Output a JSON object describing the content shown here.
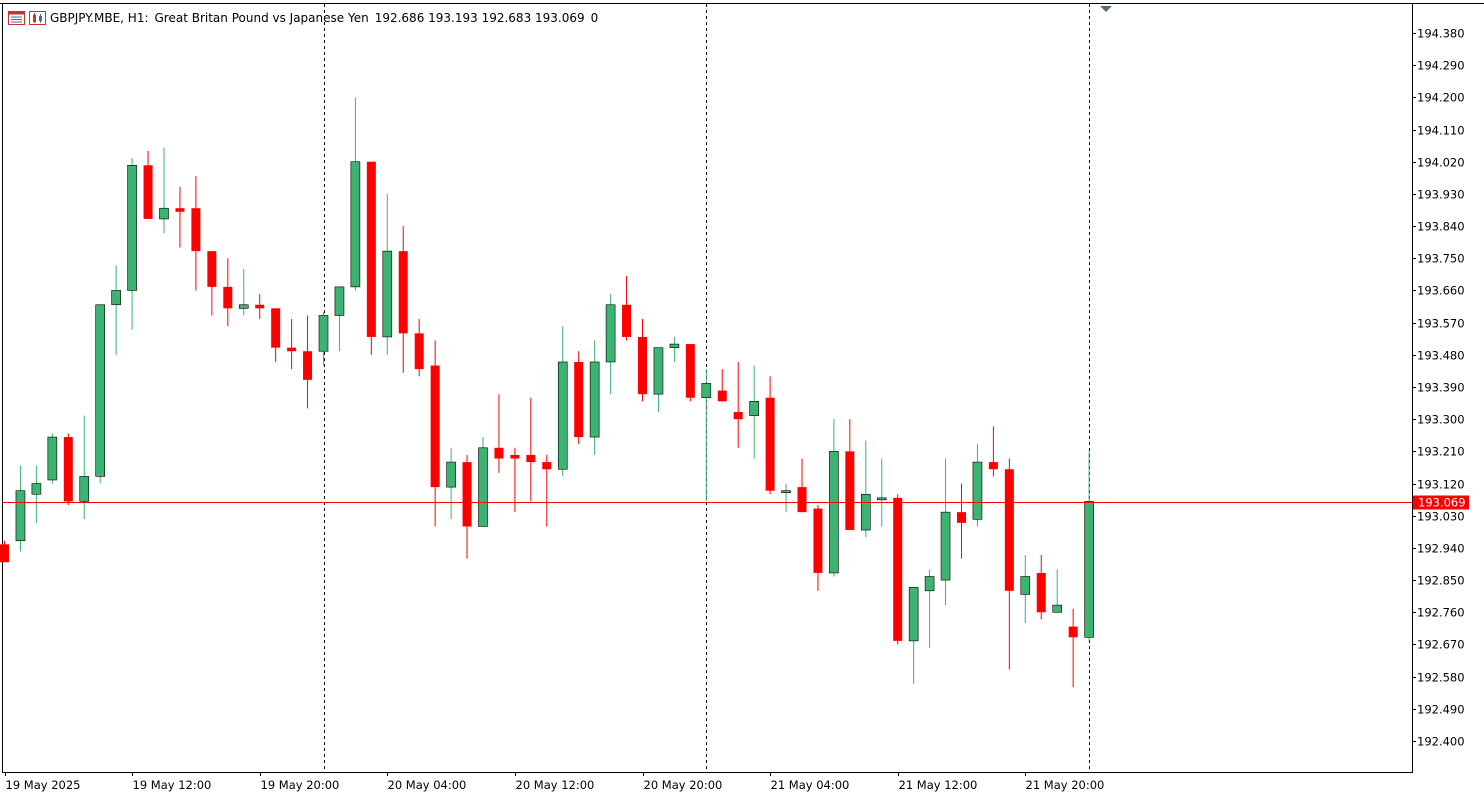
{
  "header": {
    "symbol": "GBPJPY.MBE, H1:",
    "description": "Great Britan Pound vs Japanese Yen",
    "ohlc": "192.686 193.193 192.683 193.069",
    "volume": "0"
  },
  "icons": [
    "chart-grid-icon",
    "chart-candle-icon"
  ],
  "colors": {
    "bull": "#3cb371",
    "bear": "#ff0000",
    "price_line": "#ff0000",
    "price_label_bg": "#ff0000"
  },
  "chart_data": {
    "type": "candlestick",
    "symbol": "GBPJPY.MBE",
    "timeframe": "H1",
    "ylim": [
      192.31,
      194.47
    ],
    "y_ticks": [
      "194.380",
      "194.290",
      "194.200",
      "194.110",
      "194.020",
      "193.930",
      "193.840",
      "193.750",
      "193.660",
      "193.570",
      "193.480",
      "193.390",
      "193.300",
      "193.210",
      "193.120",
      "193.030",
      "192.940",
      "192.850",
      "192.760",
      "192.670",
      "192.580",
      "192.490",
      "192.400"
    ],
    "x_labels": [
      {
        "index": 0,
        "label": "19 May 2025"
      },
      {
        "index": 8,
        "label": "19 May 12:00"
      },
      {
        "index": 16,
        "label": "19 May 20:00"
      },
      {
        "index": 24,
        "label": "20 May 04:00"
      },
      {
        "index": 32,
        "label": "20 May 12:00"
      },
      {
        "index": 40,
        "label": "20 May 20:00"
      },
      {
        "index": 48,
        "label": "21 May 04:00"
      },
      {
        "index": 56,
        "label": "21 May 12:00"
      },
      {
        "index": 64,
        "label": "21 May 20:00"
      }
    ],
    "session_separators": [
      20,
      44,
      68
    ],
    "current_price": "193.069",
    "candles": [
      [
        192.95,
        192.96,
        192.9,
        192.9
      ],
      [
        192.96,
        193.17,
        192.93,
        193.1
      ],
      [
        193.09,
        193.17,
        193.01,
        193.12
      ],
      [
        193.13,
        193.26,
        193.12,
        193.25
      ],
      [
        193.25,
        193.26,
        193.06,
        193.07
      ],
      [
        193.07,
        193.31,
        193.02,
        193.14
      ],
      [
        193.14,
        193.62,
        193.12,
        193.62
      ],
      [
        193.62,
        193.73,
        193.48,
        193.66
      ],
      [
        193.66,
        194.03,
        193.55,
        194.01
      ],
      [
        194.01,
        194.05,
        193.86,
        193.86
      ],
      [
        193.86,
        194.06,
        193.82,
        193.89
      ],
      [
        193.89,
        193.95,
        193.78,
        193.88
      ],
      [
        193.89,
        193.98,
        193.66,
        193.77
      ],
      [
        193.77,
        193.77,
        193.59,
        193.67
      ],
      [
        193.67,
        193.75,
        193.56,
        193.61
      ],
      [
        193.61,
        193.72,
        193.59,
        193.62
      ],
      [
        193.62,
        193.65,
        193.58,
        193.61
      ],
      [
        193.61,
        193.61,
        193.46,
        193.5
      ],
      [
        193.5,
        193.58,
        193.44,
        193.49
      ],
      [
        193.49,
        193.59,
        193.33,
        193.41
      ],
      [
        193.49,
        193.6,
        193.45,
        193.59
      ],
      [
        193.59,
        193.67,
        193.49,
        193.67
      ],
      [
        193.67,
        194.2,
        193.66,
        194.02
      ],
      [
        194.02,
        194.02,
        193.48,
        193.53
      ],
      [
        193.53,
        193.93,
        193.48,
        193.77
      ],
      [
        193.77,
        193.84,
        193.43,
        193.54
      ],
      [
        193.54,
        193.58,
        193.42,
        193.44
      ],
      [
        193.45,
        193.52,
        193.0,
        193.11
      ],
      [
        193.11,
        193.22,
        193.02,
        193.18
      ],
      [
        193.18,
        193.2,
        192.91,
        193.0
      ],
      [
        193.0,
        193.25,
        193.0,
        193.22
      ],
      [
        193.22,
        193.37,
        193.15,
        193.19
      ],
      [
        193.2,
        193.22,
        193.04,
        193.19
      ],
      [
        193.2,
        193.36,
        193.07,
        193.18
      ],
      [
        193.18,
        193.2,
        193.0,
        193.16
      ],
      [
        193.16,
        193.56,
        193.14,
        193.46
      ],
      [
        193.46,
        193.49,
        193.23,
        193.25
      ],
      [
        193.25,
        193.52,
        193.2,
        193.46
      ],
      [
        193.46,
        193.65,
        193.37,
        193.62
      ],
      [
        193.62,
        193.7,
        193.52,
        193.53
      ],
      [
        193.53,
        193.58,
        193.35,
        193.37
      ],
      [
        193.37,
        193.5,
        193.32,
        193.5
      ],
      [
        193.5,
        193.53,
        193.46,
        193.51
      ],
      [
        193.51,
        193.51,
        193.35,
        193.36
      ],
      [
        193.36,
        193.44,
        193.07,
        193.4
      ],
      [
        193.38,
        193.44,
        193.35,
        193.35
      ],
      [
        193.32,
        193.46,
        193.22,
        193.3
      ],
      [
        193.31,
        193.45,
        193.19,
        193.35
      ],
      [
        193.36,
        193.42,
        193.09,
        193.1
      ],
      [
        193.1,
        193.12,
        193.04,
        193.1
      ],
      [
        193.11,
        193.19,
        193.04,
        193.04
      ],
      [
        193.05,
        193.06,
        192.82,
        192.87
      ],
      [
        192.87,
        193.3,
        192.86,
        193.21
      ],
      [
        193.21,
        193.3,
        192.99,
        192.99
      ],
      [
        192.99,
        193.24,
        192.97,
        193.09
      ],
      [
        193.08,
        193.19,
        193.0,
        193.08
      ],
      [
        193.08,
        193.09,
        192.67,
        192.68
      ],
      [
        192.68,
        192.83,
        192.56,
        192.83
      ],
      [
        192.82,
        192.88,
        192.66,
        192.86
      ],
      [
        192.85,
        193.19,
        192.78,
        193.04
      ],
      [
        193.04,
        193.12,
        192.91,
        193.01
      ],
      [
        193.02,
        193.23,
        193.0,
        193.18
      ],
      [
        193.18,
        193.28,
        193.14,
        193.16
      ],
      [
        193.16,
        193.19,
        192.6,
        192.82
      ],
      [
        192.81,
        192.92,
        192.73,
        192.86
      ],
      [
        192.87,
        192.92,
        192.74,
        192.76
      ],
      [
        192.76,
        192.88,
        192.76,
        192.78
      ],
      [
        192.72,
        192.77,
        192.55,
        192.69
      ],
      [
        192.69,
        193.21,
        192.68,
        193.07
      ]
    ]
  }
}
